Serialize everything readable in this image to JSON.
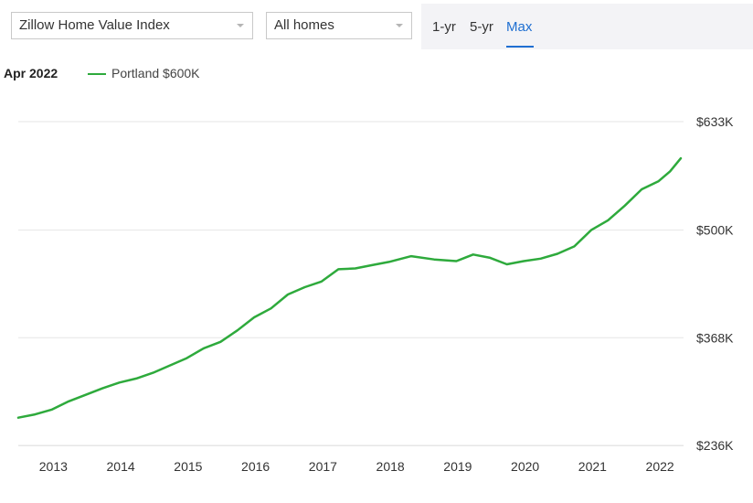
{
  "controls": {
    "metric_select": "Zillow Home Value Index",
    "homes_select": "All homes",
    "range_tabs": [
      {
        "label": "1-yr",
        "active": false
      },
      {
        "label": "5-yr",
        "active": false
      },
      {
        "label": "Max",
        "active": true
      }
    ]
  },
  "legend": {
    "date": "Apr 2022",
    "series_label": "Portland $600K",
    "color": "#2eaa3c"
  },
  "colors": {
    "accent": "#1f6fd1",
    "series": "#2eaa3c",
    "grid": "#e6e6e6"
  },
  "chart_data": {
    "type": "line",
    "title": "",
    "xlabel": "",
    "ylabel": "",
    "x_ticks": [
      "2013",
      "2014",
      "2015",
      "2016",
      "2017",
      "2018",
      "2019",
      "2020",
      "2021",
      "2022"
    ],
    "y_ticks": [
      "$633K",
      "$500K",
      "$368K",
      "$236K"
    ],
    "y_tick_values": [
      633,
      500,
      368,
      236
    ],
    "ylim": [
      236,
      633
    ],
    "xlim": [
      2012.5,
      2022.33
    ],
    "grid": true,
    "legend_position": "top-left",
    "series": [
      {
        "name": "Portland $600K",
        "x": [
          2012.5,
          2012.75,
          2013.0,
          2013.25,
          2013.5,
          2013.75,
          2014.0,
          2014.25,
          2014.5,
          2014.75,
          2015.0,
          2015.25,
          2015.5,
          2015.75,
          2016.0,
          2016.25,
          2016.5,
          2016.75,
          2017.0,
          2017.25,
          2017.5,
          2017.75,
          2018.0,
          2018.33,
          2018.67,
          2019.0,
          2019.25,
          2019.5,
          2019.75,
          2020.0,
          2020.25,
          2020.5,
          2020.75,
          2021.0,
          2021.25,
          2021.5,
          2021.75,
          2022.0,
          2022.17,
          2022.33
        ],
        "values": [
          270,
          274,
          280,
          290,
          298,
          306,
          313,
          318,
          325,
          334,
          343,
          355,
          363,
          377,
          393,
          404,
          421,
          430,
          437,
          452,
          453,
          457,
          461,
          468,
          464,
          462,
          470,
          466,
          458,
          462,
          465,
          471,
          480,
          500,
          512,
          530,
          550,
          560,
          572,
          588
        ]
      }
    ]
  }
}
